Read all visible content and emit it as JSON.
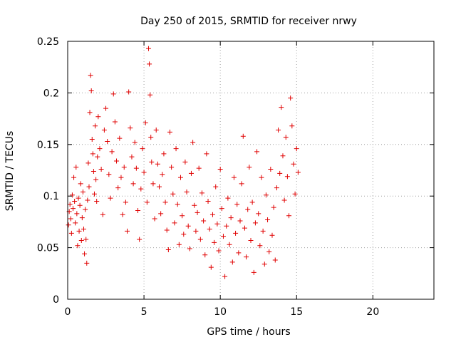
{
  "chart_data": {
    "type": "scatter",
    "title": "Day 250 of 2015, SRMTID for receiver nrwy",
    "xlabel": "GPS time / hours",
    "ylabel": "SRMTID / TECUs",
    "xlim": [
      0,
      24
    ],
    "ylim": [
      0,
      0.25
    ],
    "xticks": [
      0,
      5,
      10,
      15,
      20
    ],
    "xtick_labels": [
      "0",
      "5",
      "10",
      "15",
      "20"
    ],
    "yticks": [
      0,
      0.05,
      0.1,
      0.15,
      0.2,
      0.25
    ],
    "ytick_labels": [
      "0",
      "0.05",
      "0.1",
      "0.15",
      "0.2",
      "0.25"
    ],
    "grid": true,
    "marker": "+",
    "series": [
      {
        "name": "SRMTID",
        "color": "#e00000",
        "points": [
          [
            0.05,
            0.072
          ],
          [
            0.1,
            0.085
          ],
          [
            0.15,
            0.092
          ],
          [
            0.2,
            0.078
          ],
          [
            0.25,
            0.064
          ],
          [
            0.3,
            0.101
          ],
          [
            0.35,
            0.088
          ],
          [
            0.4,
            0.118
          ],
          [
            0.45,
            0.095
          ],
          [
            0.5,
            0.074
          ],
          [
            0.55,
            0.128
          ],
          [
            0.6,
            0.083
          ],
          [
            0.65,
            0.052
          ],
          [
            0.7,
            0.098
          ],
          [
            0.75,
            0.066
          ],
          [
            0.8,
            0.091
          ],
          [
            0.85,
            0.112
          ],
          [
            0.9,
            0.057
          ],
          [
            0.95,
            0.079
          ],
          [
            1.0,
            0.104
          ],
          [
            1.05,
            0.068
          ],
          [
            1.1,
            0.044
          ],
          [
            1.15,
            0.087
          ],
          [
            1.2,
            0.058
          ],
          [
            1.25,
            0.035
          ],
          [
            1.3,
            0.096
          ],
          [
            1.35,
            0.132
          ],
          [
            1.4,
            0.109
          ],
          [
            1.45,
            0.181
          ],
          [
            1.5,
            0.217
          ],
          [
            1.55,
            0.202
          ],
          [
            1.6,
            0.155
          ],
          [
            1.65,
            0.141
          ],
          [
            1.7,
            0.124
          ],
          [
            1.75,
            0.102
          ],
          [
            1.8,
            0.168
          ],
          [
            1.85,
            0.116
          ],
          [
            1.9,
            0.095
          ],
          [
            1.95,
            0.138
          ],
          [
            2.0,
            0.177
          ],
          [
            2.1,
            0.146
          ],
          [
            2.2,
            0.126
          ],
          [
            2.3,
            0.082
          ],
          [
            2.4,
            0.164
          ],
          [
            2.5,
            0.185
          ],
          [
            2.6,
            0.153
          ],
          [
            2.7,
            0.121
          ],
          [
            2.8,
            0.098
          ],
          [
            2.9,
            0.143
          ],
          [
            3.0,
            0.199
          ],
          [
            3.1,
            0.172
          ],
          [
            3.2,
            0.134
          ],
          [
            3.3,
            0.108
          ],
          [
            3.4,
            0.156
          ],
          [
            3.5,
            0.118
          ],
          [
            3.6,
            0.082
          ],
          [
            3.7,
            0.128
          ],
          [
            3.8,
            0.094
          ],
          [
            3.9,
            0.066
          ],
          [
            4.0,
            0.201
          ],
          [
            4.1,
            0.166
          ],
          [
            4.2,
            0.138
          ],
          [
            4.3,
            0.112
          ],
          [
            4.4,
            0.152
          ],
          [
            4.5,
            0.127
          ],
          [
            4.6,
            0.086
          ],
          [
            4.7,
            0.058
          ],
          [
            4.8,
            0.107
          ],
          [
            4.9,
            0.146
          ],
          [
            5.0,
            0.123
          ],
          [
            5.1,
            0.171
          ],
          [
            5.2,
            0.094
          ],
          [
            5.3,
            0.243
          ],
          [
            5.35,
            0.228
          ],
          [
            5.4,
            0.198
          ],
          [
            5.45,
            0.157
          ],
          [
            5.5,
            0.133
          ],
          [
            5.6,
            0.112
          ],
          [
            5.7,
            0.078
          ],
          [
            5.8,
            0.164
          ],
          [
            5.9,
            0.131
          ],
          [
            6.0,
            0.109
          ],
          [
            6.1,
            0.083
          ],
          [
            6.2,
            0.121
          ],
          [
            6.3,
            0.141
          ],
          [
            6.4,
            0.094
          ],
          [
            6.5,
            0.067
          ],
          [
            6.6,
            0.048
          ],
          [
            6.7,
            0.162
          ],
          [
            6.8,
            0.128
          ],
          [
            6.9,
            0.102
          ],
          [
            7.0,
            0.074
          ],
          [
            7.1,
            0.146
          ],
          [
            7.2,
            0.092
          ],
          [
            7.3,
            0.053
          ],
          [
            7.4,
            0.118
          ],
          [
            7.5,
            0.081
          ],
          [
            7.6,
            0.063
          ],
          [
            7.7,
            0.133
          ],
          [
            7.8,
            0.104
          ],
          [
            7.9,
            0.071
          ],
          [
            8.0,
            0.049
          ],
          [
            8.1,
            0.122
          ],
          [
            8.2,
            0.152
          ],
          [
            8.3,
            0.091
          ],
          [
            8.4,
            0.066
          ],
          [
            8.5,
            0.084
          ],
          [
            8.6,
            0.127
          ],
          [
            8.7,
            0.058
          ],
          [
            8.8,
            0.103
          ],
          [
            8.9,
            0.076
          ],
          [
            9.0,
            0.043
          ],
          [
            9.1,
            0.141
          ],
          [
            9.2,
            0.095
          ],
          [
            9.3,
            0.068
          ],
          [
            9.4,
            0.031
          ],
          [
            9.5,
            0.082
          ],
          [
            9.6,
            0.055
          ],
          [
            9.7,
            0.109
          ],
          [
            9.8,
            0.073
          ],
          [
            9.9,
            0.047
          ],
          [
            10.0,
            0.126
          ],
          [
            10.1,
            0.088
          ],
          [
            10.2,
            0.061
          ],
          [
            10.3,
            0.022
          ],
          [
            10.4,
            0.071
          ],
          [
            10.5,
            0.098
          ],
          [
            10.6,
            0.053
          ],
          [
            10.7,
            0.079
          ],
          [
            10.8,
            0.036
          ],
          [
            10.9,
            0.118
          ],
          [
            11.0,
            0.064
          ],
          [
            11.1,
            0.092
          ],
          [
            11.2,
            0.045
          ],
          [
            11.3,
            0.076
          ],
          [
            11.4,
            0.112
          ],
          [
            11.5,
            0.158
          ],
          [
            11.6,
            0.069
          ],
          [
            11.7,
            0.041
          ],
          [
            11.8,
            0.087
          ],
          [
            11.9,
            0.128
          ],
          [
            12.0,
            0.057
          ],
          [
            12.1,
            0.094
          ],
          [
            12.2,
            0.026
          ],
          [
            12.3,
            0.074
          ],
          [
            12.4,
            0.143
          ],
          [
            12.5,
            0.083
          ],
          [
            12.6,
            0.052
          ],
          [
            12.7,
            0.118
          ],
          [
            12.8,
            0.066
          ],
          [
            12.9,
            0.034
          ],
          [
            13.0,
            0.101
          ],
          [
            13.1,
            0.077
          ],
          [
            13.2,
            0.046
          ],
          [
            13.3,
            0.126
          ],
          [
            13.4,
            0.062
          ],
          [
            13.5,
            0.089
          ],
          [
            13.6,
            0.038
          ],
          [
            13.7,
            0.108
          ],
          [
            13.8,
            0.164
          ],
          [
            13.9,
            0.122
          ],
          [
            14.0,
            0.186
          ],
          [
            14.1,
            0.139
          ],
          [
            14.2,
            0.096
          ],
          [
            14.3,
            0.157
          ],
          [
            14.4,
            0.119
          ],
          [
            14.5,
            0.081
          ],
          [
            14.6,
            0.195
          ],
          [
            14.7,
            0.168
          ],
          [
            14.8,
            0.131
          ],
          [
            14.9,
            0.102
          ],
          [
            15.0,
            0.146
          ],
          [
            15.1,
            0.123
          ]
        ]
      }
    ]
  }
}
